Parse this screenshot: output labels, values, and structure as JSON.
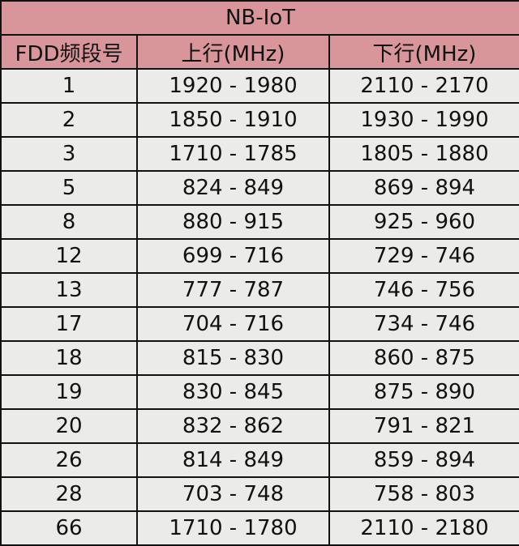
{
  "title": "NB-IoT",
  "headers": [
    "FDD频段号",
    "上行(MHz)",
    "下行(MHz)"
  ],
  "colors": {
    "header_bg": "#d9969a",
    "body_bg": "#ebebe9",
    "border": "#111111"
  },
  "rows": [
    [
      "1",
      "1920 - 1980",
      "2110 - 2170"
    ],
    [
      "2",
      "1850 - 1910",
      "1930 - 1990"
    ],
    [
      "3",
      "1710 - 1785",
      "1805 - 1880"
    ],
    [
      "5",
      "824 - 849",
      "869 - 894"
    ],
    [
      "8",
      "880 - 915",
      "925 - 960"
    ],
    [
      "12",
      "699 - 716",
      "729 - 746"
    ],
    [
      "13",
      "777 - 787",
      "746 - 756"
    ],
    [
      "17",
      "704 - 716",
      "734 - 746"
    ],
    [
      "18",
      "815 - 830",
      "860 - 875"
    ],
    [
      "19",
      "830 - 845",
      "875 - 890"
    ],
    [
      "20",
      "832 - 862",
      "791 - 821"
    ],
    [
      "26",
      "814 - 849",
      "859 - 894"
    ],
    [
      "28",
      "703 - 748",
      "758 - 803"
    ],
    [
      "66",
      "1710 - 1780",
      "2110 - 2180"
    ]
  ]
}
